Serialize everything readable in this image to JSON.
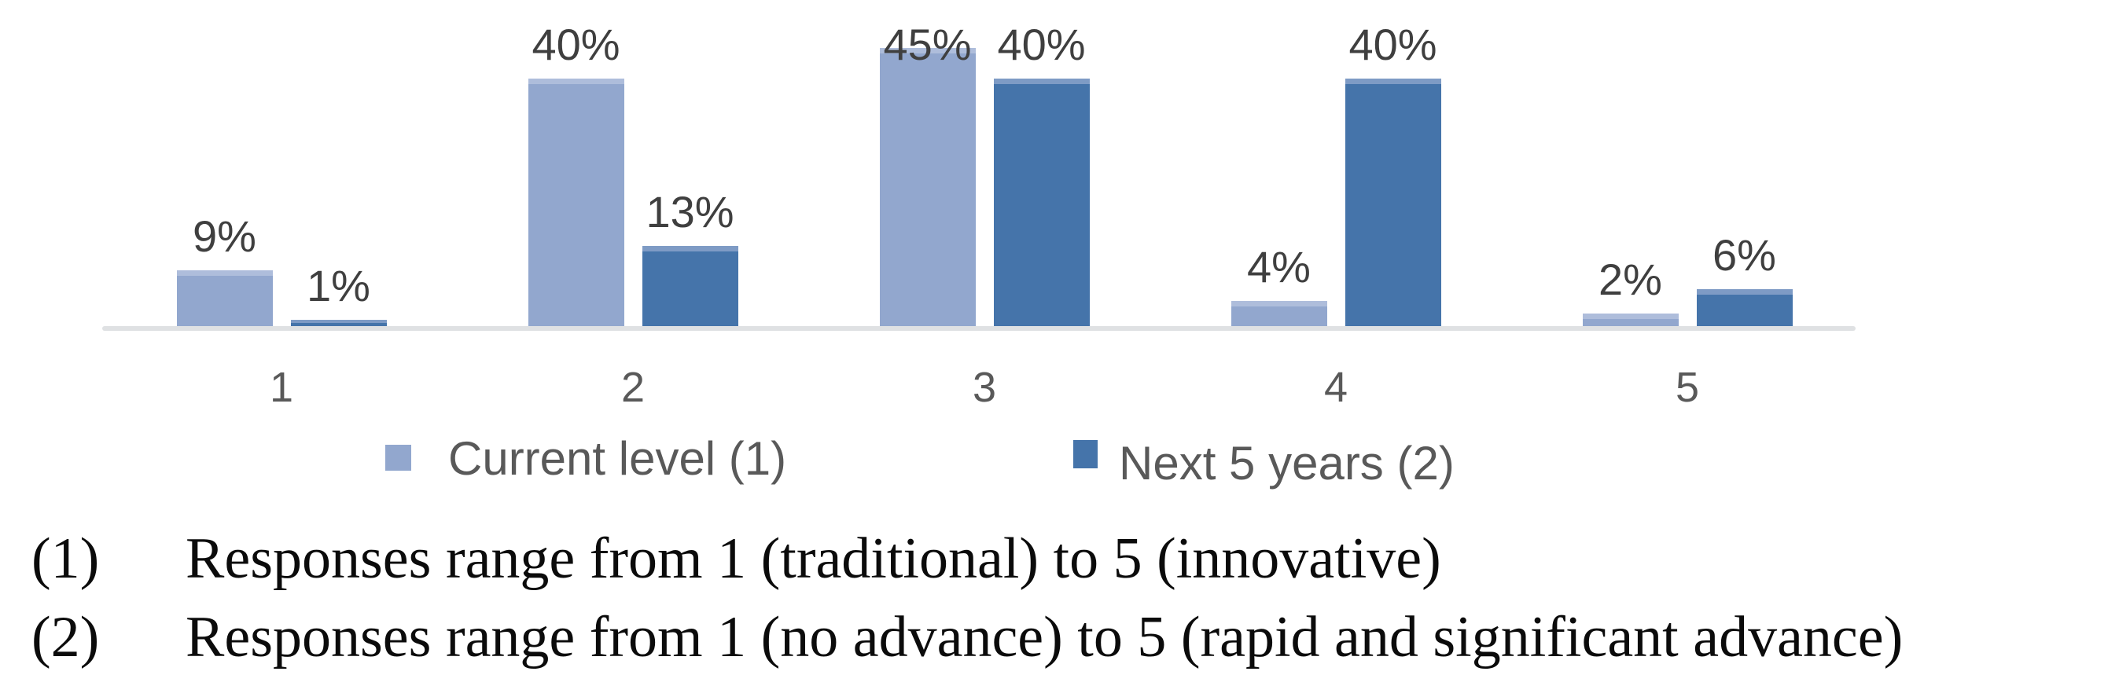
{
  "chart_data": {
    "type": "bar",
    "title": "",
    "xlabel": "",
    "ylabel": "",
    "ylim": [
      0,
      50
    ],
    "grid": false,
    "legend_position": "bottom",
    "data_labels": true,
    "value_suffix": "%",
    "categories": [
      "1",
      "2",
      "3",
      "4",
      "5"
    ],
    "series": [
      {
        "name": "Current level (1)",
        "values": [
          9,
          40,
          45,
          4,
          2
        ],
        "labels": [
          "9%",
          "40%",
          "45%",
          "4%",
          "2%"
        ],
        "color": "#92A7CE",
        "cap_color": "#AEBDDB"
      },
      {
        "name": "Next 5 years (2)",
        "values": [
          1,
          13,
          40,
          40,
          6
        ],
        "labels": [
          "1%",
          "13%",
          "40%",
          "40%",
          "6%"
        ],
        "color": "#4574AA",
        "cap_color": "#7E9BC5"
      }
    ],
    "colors": {
      "axis_line": "#DFE1E3",
      "data_label": "#3F3F3F",
      "tick_label": "#595959",
      "legend_label": "#595959"
    }
  },
  "footnotes": [
    {
      "marker": "(1)",
      "text": "Responses range from 1 (traditional) to 5 (innovative)"
    },
    {
      "marker": "(2)",
      "text": "Responses range from 1 (no advance) to 5 (rapid and significant advance)"
    }
  ]
}
